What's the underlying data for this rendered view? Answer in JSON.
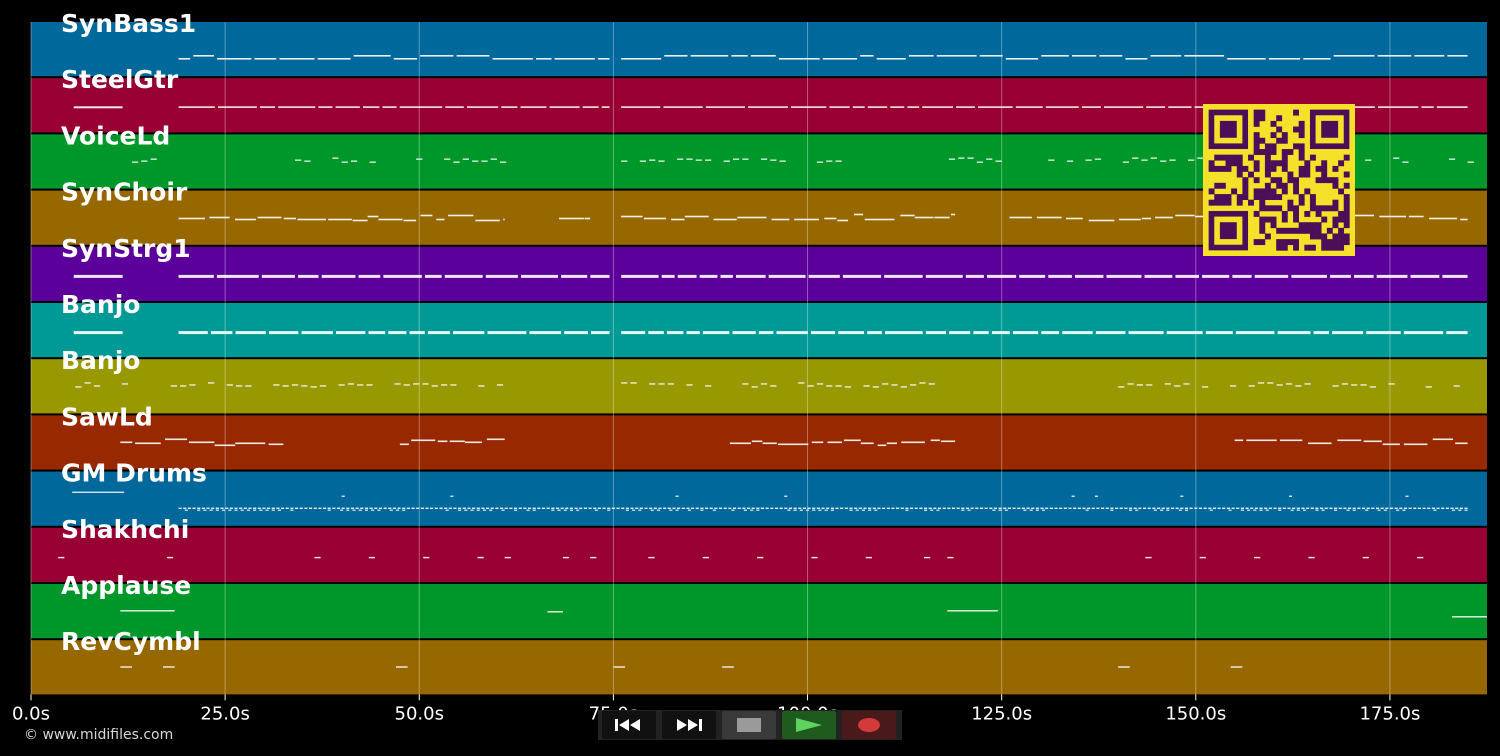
{
  "tracks": [
    {
      "name": "SynBass1",
      "color": "#01689b",
      "style": "dash"
    },
    {
      "name": "SteelGtr",
      "color": "#980034",
      "style": "dots"
    },
    {
      "name": "VoiceLd",
      "color": "#00972a",
      "style": "sparse"
    },
    {
      "name": "SynChoir",
      "color": "#976700",
      "style": "phrase"
    },
    {
      "name": "SynStrg1",
      "color": "#5b009b",
      "style": "double"
    },
    {
      "name": "Banjo",
      "color": "#009a96",
      "style": "double"
    },
    {
      "name": "Banjo",
      "color": "#989800",
      "style": "sparse"
    },
    {
      "name": "SawLd",
      "color": "#972800",
      "style": "phrase"
    },
    {
      "name": "GM Drums",
      "color": "#01689b",
      "style": "drums"
    },
    {
      "name": "Shakhchi",
      "color": "#980034",
      "style": "blips"
    },
    {
      "name": "Applause",
      "color": "#00972a",
      "style": "lines"
    },
    {
      "name": "RevCymbl",
      "color": "#976700",
      "style": "blips"
    }
  ],
  "time_axis": {
    "ticks": [
      "0.0s",
      "25.0s",
      "50.0s",
      "75.0s",
      "100.0s",
      "125.0s",
      "150.0s",
      "175.0s"
    ],
    "tick_values": [
      0,
      25,
      50,
      75,
      100,
      125,
      150,
      175
    ],
    "max_seconds": 187.5
  },
  "footer": {
    "copyright": "© www.midifiles.com"
  },
  "controls": [
    {
      "name": "rewind-button",
      "icon": "rewind-icon",
      "color": "#111111"
    },
    {
      "name": "fast-forward-button",
      "icon": "fast-forward-icon",
      "color": "#111111"
    },
    {
      "name": "stop-button",
      "icon": "stop-icon",
      "color": "#3a3a3a"
    },
    {
      "name": "play-button",
      "icon": "play-icon",
      "color": "#1f5a1f"
    },
    {
      "name": "record-button",
      "icon": "record-icon",
      "color": "#4a1a1a"
    }
  ],
  "qr_colors": {
    "dark": "#4b0f5a",
    "light": "#f5e12a"
  }
}
